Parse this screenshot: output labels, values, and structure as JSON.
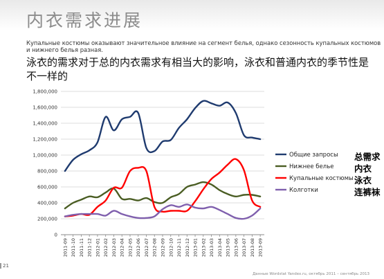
{
  "slide": {
    "title": "内衣需求进展",
    "subtitle_ru": "Купальные костюмы оказывают значительное влияние на сегмент белья, однако сезонность купальных костюмов и нижнего белья разная.",
    "subtitle_cn": "泳衣的需求对于总的内衣需求有相当大的影响，泳衣和普通内衣的季节性是不一样的",
    "cn_notes": [
      "总需求",
      "内衣",
      "泳衣",
      "连裤袜"
    ],
    "page_number": "21",
    "footer_source": "Данные Wordstat Yandex.ru, октябрь 2011 – сентябрь 2013"
  },
  "chart_data": {
    "type": "line",
    "title": "",
    "xlabel": "",
    "ylabel": "",
    "ylim": [
      0,
      1800000
    ],
    "yticks": [
      0,
      200000,
      400000,
      600000,
      800000,
      1000000,
      1200000,
      1400000,
      1600000,
      1800000
    ],
    "ytick_labels": [
      "0",
      "200,000",
      "400,000",
      "600,000",
      "800,000",
      "1,000,000",
      "1,200,000",
      "1,400,000",
      "1,600,000",
      "1,800,000"
    ],
    "grid": true,
    "legend_position": "right",
    "categories": [
      "2011-09",
      "2011-10",
      "2011-11",
      "2011-12",
      "2012-01",
      "2012-02",
      "2012-03",
      "2012-04",
      "2012-05",
      "2012-06",
      "2012-07",
      "2012-08",
      "2012-09",
      "2012-10",
      "2012-11",
      "2012-12",
      "2013-01",
      "2013-02",
      "2013-03",
      "2013-04",
      "2013-05",
      "2013-06",
      "2013-07",
      "2013-08",
      "2013-09"
    ],
    "series": [
      {
        "name": "Общие запросы",
        "color": "#1f3b6f",
        "values": [
          800000,
          940000,
          1010000,
          1060000,
          1160000,
          1480000,
          1310000,
          1450000,
          1480000,
          1530000,
          1090000,
          1050000,
          1170000,
          1190000,
          1340000,
          1450000,
          1590000,
          1680000,
          1650000,
          1620000,
          1660000,
          1530000,
          1250000,
          1220000,
          1200000
        ]
      },
      {
        "name": "Нижнее белье",
        "color": "#4a5d23",
        "values": [
          330000,
          400000,
          440000,
          480000,
          470000,
          530000,
          580000,
          450000,
          450000,
          430000,
          460000,
          410000,
          400000,
          470000,
          510000,
          600000,
          630000,
          660000,
          630000,
          560000,
          510000,
          480000,
          500000,
          500000,
          480000
        ]
      },
      {
        "name": "Купальные костюмы",
        "color": "#ff0000",
        "values": [
          230000,
          240000,
          260000,
          250000,
          350000,
          430000,
          590000,
          590000,
          800000,
          840000,
          800000,
          350000,
          290000,
          300000,
          300000,
          300000,
          420000,
          570000,
          700000,
          780000,
          880000,
          950000,
          810000,
          430000,
          350000
        ]
      },
      {
        "name": "Колготки",
        "color": "#7f5fad",
        "values": [
          230000,
          250000,
          260000,
          260000,
          260000,
          240000,
          300000,
          260000,
          230000,
          210000,
          210000,
          230000,
          320000,
          370000,
          350000,
          380000,
          340000,
          330000,
          350000,
          310000,
          260000,
          210000,
          200000,
          240000,
          330000
        ]
      }
    ]
  }
}
